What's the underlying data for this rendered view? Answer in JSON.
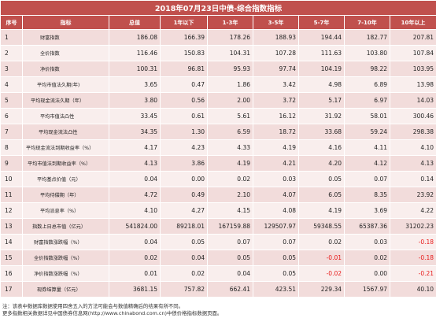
{
  "title": "2018年07月23日中债-综合指数指标",
  "columns": [
    "序号",
    "指标",
    "总值",
    "1年以下",
    "1-3年",
    "3-5年",
    "5-7年",
    "7-10年",
    "10年以上"
  ],
  "rows": [
    {
      "seq": "1",
      "name": "财富指数",
      "indent": 22,
      "values": [
        "186.08",
        "166.39",
        "178.26",
        "188.93",
        "194.44",
        "182.77",
        "207.81"
      ]
    },
    {
      "seq": "2",
      "name": "全价指数",
      "indent": 22,
      "values": [
        "116.46",
        "150.83",
        "104.31",
        "107.28",
        "111.63",
        "103.80",
        "107.84"
      ]
    },
    {
      "seq": "3",
      "name": "净价指数",
      "indent": 22,
      "values": [
        "100.31",
        "96.81",
        "95.93",
        "97.74",
        "104.19",
        "98.22",
        "103.95"
      ]
    },
    {
      "seq": "4",
      "name": "平均市值法久期(年)",
      "indent": 18,
      "values": [
        "3.65",
        "0.47",
        "1.86",
        "3.42",
        "4.98",
        "6.89",
        "13.98"
      ]
    },
    {
      "seq": "5",
      "name": "平均现金流法久期（年）",
      "indent": 10,
      "values": [
        "3.80",
        "0.56",
        "2.00",
        "3.72",
        "5.17",
        "6.97",
        "14.03"
      ]
    },
    {
      "seq": "6",
      "name": "平均市值法凸性",
      "indent": 22,
      "values": [
        "33.45",
        "0.61",
        "5.61",
        "16.12",
        "31.92",
        "58.01",
        "300.46"
      ]
    },
    {
      "seq": "7",
      "name": "平均现金流法凸性",
      "indent": 20,
      "values": [
        "34.35",
        "1.30",
        "6.59",
        "18.72",
        "33.68",
        "59.24",
        "298.38"
      ]
    },
    {
      "seq": "8",
      "name": "平均现金流法到期收益率（%）",
      "indent": 4,
      "values": [
        "4.17",
        "4.23",
        "4.33",
        "4.19",
        "4.16",
        "4.11",
        "4.10"
      ]
    },
    {
      "seq": "9",
      "name": "平均市值法到期收益率（%）",
      "indent": 6,
      "values": [
        "4.13",
        "3.86",
        "4.19",
        "4.21",
        "4.20",
        "4.12",
        "4.13"
      ]
    },
    {
      "seq": "10",
      "name": "平均基点价值（元）",
      "indent": 18,
      "values": [
        "0.04",
        "0.00",
        "0.02",
        "0.03",
        "0.05",
        "0.07",
        "0.14"
      ]
    },
    {
      "seq": "11",
      "name": "平均待偿期（年）",
      "indent": 22,
      "values": [
        "4.72",
        "0.49",
        "2.10",
        "4.07",
        "6.05",
        "8.35",
        "23.92"
      ]
    },
    {
      "seq": "12",
      "name": "平均派息率（%）",
      "indent": 22,
      "values": [
        "4.10",
        "4.27",
        "4.15",
        "4.08",
        "4.19",
        "3.69",
        "4.22"
      ]
    },
    {
      "seq": "13",
      "name": "指数上日总市值（亿元）",
      "indent": 12,
      "values": [
        "541824.00",
        "89218.01",
        "167159.88",
        "129507.97",
        "59348.55",
        "65387.36",
        "31202.23"
      ]
    },
    {
      "seq": "14",
      "name": "财富指数涨跌幅（%）",
      "indent": 14,
      "values": [
        "0.04",
        "0.05",
        "0.07",
        "0.07",
        "0.02",
        "0.03",
        "-0.18"
      ]
    },
    {
      "seq": "15",
      "name": "全价指数涨跌幅（%）",
      "indent": 14,
      "values": [
        "0.02",
        "0.04",
        "0.05",
        "0.05",
        "-0.01",
        "0.02",
        "-0.18"
      ]
    },
    {
      "seq": "16",
      "name": "净价指数涨跌幅（%）",
      "indent": 14,
      "values": [
        "0.01",
        "0.02",
        "0.04",
        "0.05",
        "-0.02",
        "0.00",
        "-0.21"
      ]
    },
    {
      "seq": "17",
      "name": "现券结算量（亿元）",
      "indent": 18,
      "values": [
        "3681.15",
        "757.82",
        "662.41",
        "423.51",
        "229.34",
        "1567.97",
        "40.10"
      ]
    }
  ],
  "notes": [
    "注：该表中数据库数据使用四舍五入的方法可能会与数值精确后的结果有所不同。",
    "更多指数相关数据详见中国债券信息网(http://www.chinabond.com.cn)中债价格指标数据页面。"
  ]
}
